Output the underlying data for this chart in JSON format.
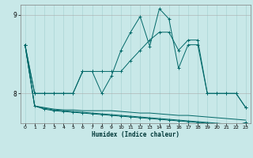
{
  "xlabel": "Humidex (Indice chaleur)",
  "bg_color": "#c8e8e8",
  "line_color": "#006868",
  "grid_color": "#aad4d4",
  "xlim": [
    -0.5,
    23.5
  ],
  "ylim": [
    7.62,
    9.13
  ],
  "yticks": [
    8,
    9
  ],
  "xticks": [
    0,
    1,
    2,
    3,
    4,
    5,
    6,
    7,
    8,
    9,
    10,
    11,
    12,
    13,
    14,
    15,
    16,
    17,
    18,
    19,
    20,
    21,
    22,
    23
  ],
  "series": [
    {
      "x": [
        0,
        1,
        2,
        3,
        4,
        5,
        6,
        7,
        8,
        9,
        10,
        11,
        12,
        13,
        14,
        15,
        16,
        17,
        18,
        19,
        20,
        21,
        22,
        23
      ],
      "y": [
        8.62,
        8.0,
        8.0,
        8.0,
        8.0,
        8.0,
        8.28,
        8.28,
        8.28,
        8.28,
        8.28,
        8.42,
        8.55,
        8.68,
        8.78,
        8.78,
        8.55,
        8.68,
        8.68,
        8.0,
        8.0,
        8.0,
        8.0,
        7.82
      ],
      "marker": true
    },
    {
      "x": [
        0,
        1,
        2,
        3,
        4,
        5,
        6,
        7,
        8,
        9,
        10,
        11,
        12,
        13,
        14,
        15,
        16,
        17,
        18,
        19,
        20,
        21,
        22,
        23
      ],
      "y": [
        8.62,
        8.0,
        8.0,
        8.0,
        8.0,
        8.0,
        8.28,
        8.28,
        8.0,
        8.22,
        8.55,
        8.78,
        8.98,
        8.6,
        9.08,
        8.95,
        8.32,
        8.62,
        8.62,
        8.0,
        8.0,
        8.0,
        8.0,
        7.82
      ],
      "marker": true
    },
    {
      "x": [
        0,
        1,
        2,
        3,
        4,
        5,
        6,
        7,
        8,
        9,
        10,
        11,
        12,
        13,
        14,
        15,
        16,
        17,
        18,
        19,
        20,
        21,
        22,
        23
      ],
      "y": [
        8.62,
        7.84,
        7.82,
        7.8,
        7.79,
        7.79,
        7.78,
        7.78,
        7.78,
        7.78,
        7.77,
        7.76,
        7.75,
        7.75,
        7.74,
        7.73,
        7.72,
        7.72,
        7.71,
        7.7,
        7.69,
        7.68,
        7.67,
        7.66
      ],
      "marker": false
    },
    {
      "x": [
        0,
        1,
        2,
        3,
        4,
        5,
        6,
        7,
        8,
        9,
        10,
        11,
        12,
        13,
        14,
        15,
        16,
        17,
        18,
        19,
        20,
        21,
        22,
        23
      ],
      "y": [
        8.62,
        7.84,
        7.81,
        7.79,
        7.78,
        7.77,
        7.76,
        7.75,
        7.74,
        7.73,
        7.72,
        7.71,
        7.7,
        7.69,
        7.68,
        7.67,
        7.66,
        7.65,
        7.64,
        7.63,
        7.62,
        7.61,
        7.6,
        7.59
      ],
      "marker": false
    },
    {
      "x": [
        0,
        1,
        2,
        3,
        4,
        5,
        6,
        7,
        8,
        9,
        10,
        11,
        12,
        13,
        14,
        15,
        16,
        17,
        18,
        19,
        20,
        21,
        22,
        23
      ],
      "y": [
        8.62,
        7.84,
        7.8,
        7.78,
        7.77,
        7.76,
        7.75,
        7.74,
        7.73,
        7.72,
        7.71,
        7.7,
        7.69,
        7.68,
        7.67,
        7.66,
        7.65,
        7.64,
        7.63,
        7.62,
        7.61,
        7.6,
        7.59,
        7.63
      ],
      "marker": true
    }
  ]
}
